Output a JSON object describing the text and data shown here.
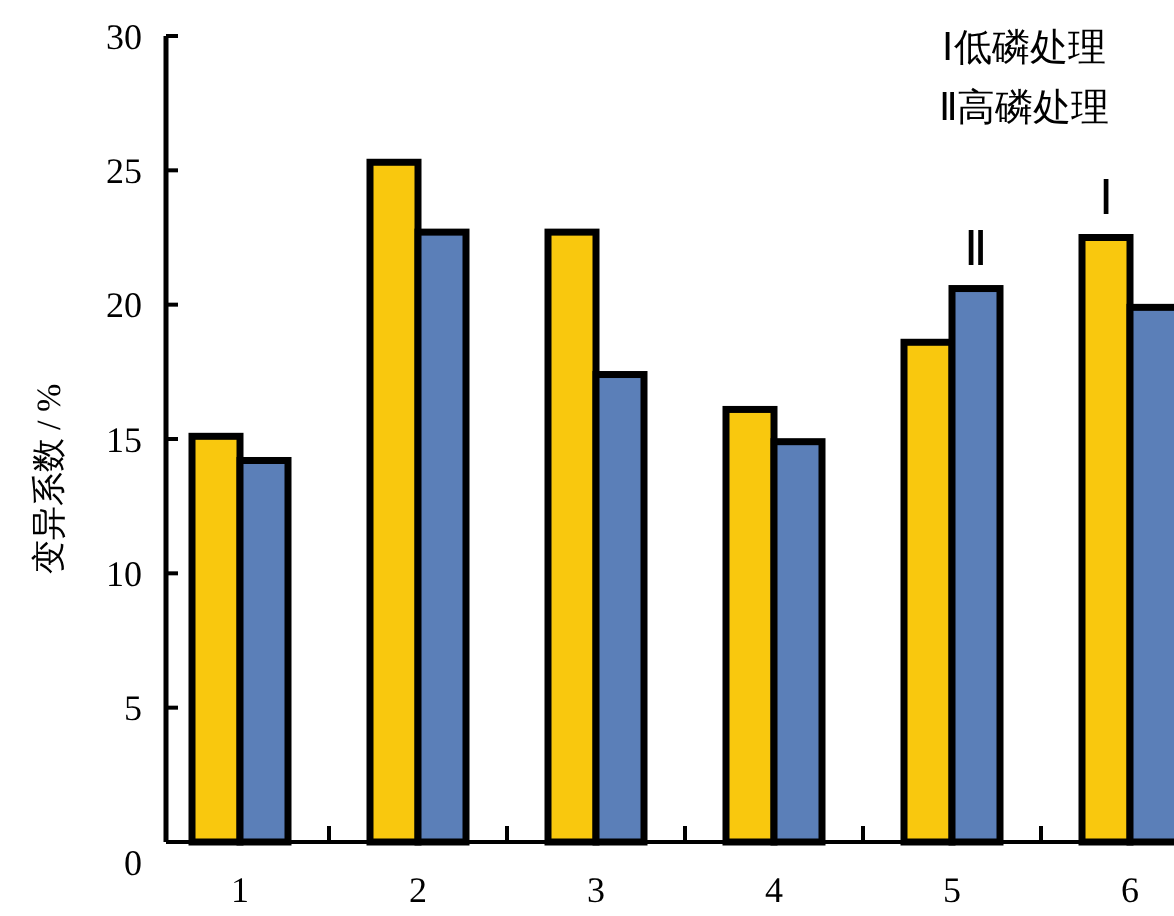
{
  "chart_data": {
    "type": "bar",
    "ylabel": "变异系数 / %",
    "categories": [
      "1",
      "2",
      "3",
      "4",
      "5",
      "6"
    ],
    "series": [
      {
        "name": "Ⅰ",
        "color": "#f9c80e",
        "values": [
          15.1,
          25.3,
          22.7,
          16.1,
          18.6,
          22.5
        ]
      },
      {
        "name": "Ⅱ",
        "color": "#5b7fb8",
        "values": [
          14.2,
          22.7,
          17.4,
          14.9,
          20.6,
          19.9
        ]
      }
    ],
    "ylim": [
      0,
      30
    ],
    "yticks": [
      0,
      5,
      10,
      15,
      20,
      25,
      30
    ],
    "grid": false,
    "annotations": [
      "Ⅰ低磷处理",
      "Ⅱ高磷处理"
    ]
  }
}
